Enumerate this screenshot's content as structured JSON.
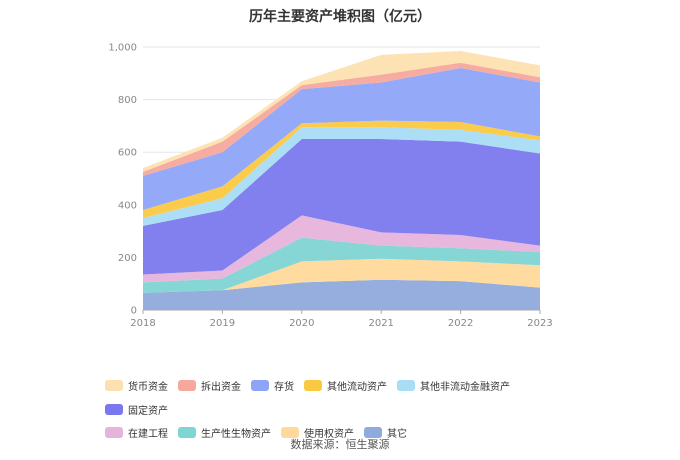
{
  "chart_data": {
    "type": "area",
    "stacked": true,
    "title": "历年主要资产堆积图（亿元）",
    "x": [
      "2018",
      "2019",
      "2020",
      "2021",
      "2022",
      "2023"
    ],
    "yticks": [
      "0",
      "200",
      "400",
      "600",
      "800",
      "1,000"
    ],
    "ylim": [
      0,
      1000
    ],
    "legend_position": "bottom",
    "series": [
      {
        "name": "其它",
        "color": "#8faadc",
        "values": [
          65,
          75,
          105,
          115,
          110,
          85
        ]
      },
      {
        "name": "使用权资产",
        "color": "#ffd99a",
        "values": [
          0,
          0,
          80,
          80,
          75,
          85
        ]
      },
      {
        "name": "生产性生物资产",
        "color": "#7fd4d4",
        "values": [
          40,
          45,
          90,
          50,
          50,
          50
        ]
      },
      {
        "name": "在建工程",
        "color": "#e6b3dc",
        "values": [
          30,
          30,
          85,
          50,
          50,
          25
        ]
      },
      {
        "name": "固定资产",
        "color": "#7b78ee",
        "values": [
          185,
          230,
          290,
          355,
          355,
          350
        ]
      },
      {
        "name": "其他非流动金融资产",
        "color": "#a8ddf5",
        "values": [
          30,
          45,
          45,
          45,
          45,
          50
        ]
      },
      {
        "name": "其他流动资产",
        "color": "#fbc842",
        "values": [
          30,
          45,
          15,
          25,
          30,
          15
        ]
      },
      {
        "name": "存货",
        "color": "#8ea4f8",
        "values": [
          130,
          130,
          130,
          145,
          205,
          205
        ]
      },
      {
        "name": "拆出资金",
        "color": "#f7a89d",
        "values": [
          15,
          40,
          15,
          30,
          20,
          20
        ]
      },
      {
        "name": "货币资金",
        "color": "#fde0b0",
        "values": [
          15,
          15,
          15,
          75,
          45,
          45
        ]
      }
    ]
  },
  "legend_order": [
    "货币资金",
    "拆出资金",
    "存货",
    "其他流动资产",
    "其他非流动金融资产",
    "固定资产",
    "在建工程",
    "生产性生物资产",
    "使用权资产",
    "其它"
  ],
  "source_text": "数据来源：恒生聚源"
}
